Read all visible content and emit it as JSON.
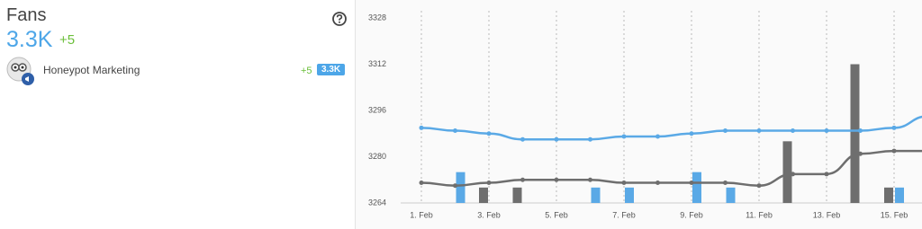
{
  "panel": {
    "title": "Fans",
    "total": "3.3K",
    "change": "+5",
    "accounts": [
      {
        "name": "Honeypot Marketing",
        "change": "+5",
        "total": "3.3K"
      }
    ]
  },
  "chart_data": {
    "type": "line",
    "categories": [
      "1. Feb",
      null,
      "3. Feb",
      null,
      "5. Feb",
      null,
      "7. Feb",
      null,
      "9. Feb",
      null,
      "11. Feb",
      null,
      "13. Feb",
      null,
      "15. Feb",
      null
    ],
    "series": [
      {
        "color": "#5aa9e6",
        "values": [
          3290,
          3289,
          3288,
          3286,
          3286,
          3286,
          3287,
          3287,
          3288,
          3289,
          3289,
          3289,
          3289,
          3289,
          3290,
          3294
        ]
      },
      {
        "color": "#6e6e6e",
        "values": [
          3271,
          3270,
          3271,
          3272,
          3272,
          3272,
          3271,
          3271,
          3271,
          3271,
          3270,
          3274,
          3274,
          3281,
          3282,
          3282
        ]
      },
      {
        "type": "bar",
        "axis": "y2",
        "color": "#5aa9e6",
        "values": [
          null,
          2,
          null,
          null,
          null,
          1,
          1,
          null,
          2,
          1,
          null,
          null,
          null,
          null,
          1,
          null
        ]
      },
      {
        "type": "bar",
        "axis": "y2",
        "color": "#6e6e6e",
        "values": [
          null,
          null,
          1,
          1,
          null,
          null,
          null,
          null,
          null,
          null,
          null,
          4,
          null,
          9,
          1,
          null
        ]
      }
    ],
    "ylim": [
      3264,
      3328
    ],
    "yticks": [
      3264,
      3280,
      3296,
      3312,
      3328
    ],
    "y2lim": [
      0,
      12
    ],
    "grid": true
  }
}
